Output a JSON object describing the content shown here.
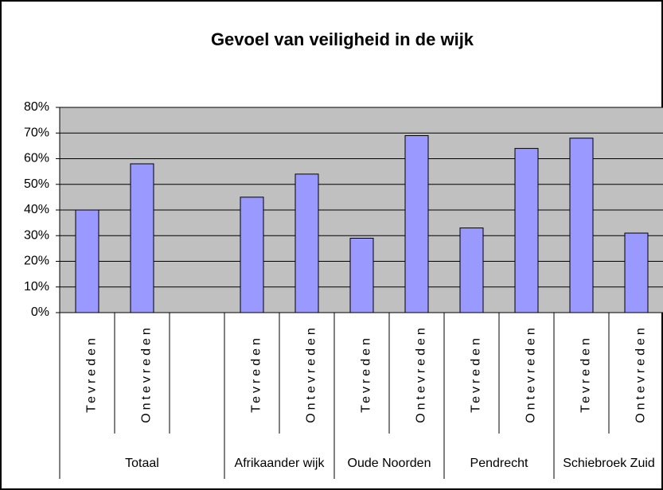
{
  "chart_data": {
    "type": "bar",
    "title": "Gevoel van veiligheid in de wijk",
    "categories": [
      "Tevreden",
      "Ontevreden",
      null,
      "Tevreden",
      "Ontevreden",
      "Tevreden",
      "Ontevreden",
      "Tevreden",
      "Ontevreden",
      "Tevreden",
      "Ontevreden"
    ],
    "values": [
      40,
      58,
      null,
      45,
      54,
      29,
      69,
      33,
      64,
      68,
      31
    ],
    "groups": [
      {
        "label": "Totaal",
        "size": 3
      },
      {
        "label": "Afrikaander wijk",
        "size": 2
      },
      {
        "label": "Oude Noorden",
        "size": 2
      },
      {
        "label": "Pendrecht",
        "size": 2
      },
      {
        "label": "Schiebroek Zuid",
        "size": 2
      }
    ],
    "color": "#9999ff",
    "ylim": [
      0,
      80
    ],
    "yticks": [
      {
        "value": 0,
        "label": "0%"
      },
      {
        "value": 10,
        "label": "10%"
      },
      {
        "value": 20,
        "label": "20%"
      },
      {
        "value": 30,
        "label": "30%"
      },
      {
        "value": 40,
        "label": "40%"
      },
      {
        "value": 50,
        "label": "50%"
      },
      {
        "value": 60,
        "label": "60%"
      },
      {
        "value": 70,
        "label": "70%"
      },
      {
        "value": 80,
        "label": "80%"
      }
    ],
    "grid": true
  }
}
